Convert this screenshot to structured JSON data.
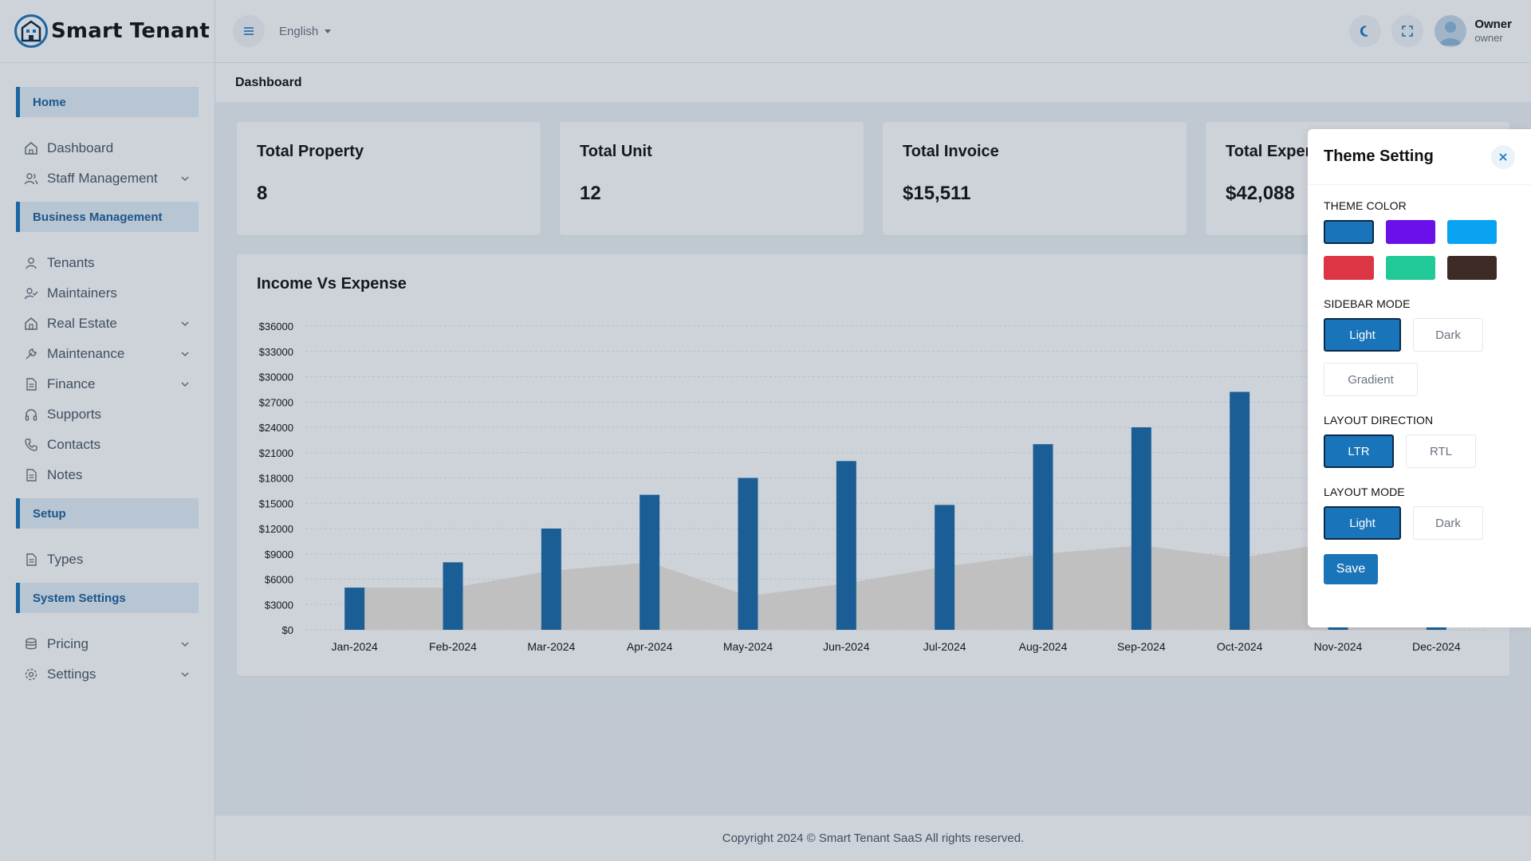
{
  "app": {
    "name": "Smart Tenant"
  },
  "header": {
    "language": "English",
    "user": {
      "name": "Owner",
      "role": "owner"
    }
  },
  "sidebar": {
    "sections": {
      "home": "Home",
      "business": "Business Management",
      "setup": "Setup",
      "system": "System Settings"
    },
    "items": {
      "dashboard": "Dashboard",
      "staff": "Staff Management",
      "tenants": "Tenants",
      "maintainers": "Maintainers",
      "real_estate": "Real Estate",
      "maintenance": "Maintenance",
      "finance": "Finance",
      "supports": "Supports",
      "contacts": "Contacts",
      "notes": "Notes",
      "types": "Types",
      "pricing": "Pricing",
      "settings": "Settings"
    }
  },
  "breadcrumb": "Dashboard",
  "stats": [
    {
      "title": "Total Property",
      "value": "8"
    },
    {
      "title": "Total Unit",
      "value": "12"
    },
    {
      "title": "Total Invoice",
      "value": "$15,511"
    },
    {
      "title": "Total Expense",
      "value": "$42,088"
    }
  ],
  "chart_data": {
    "type": "bar",
    "title": "Income Vs Expense",
    "categories": [
      "Jan-2024",
      "Feb-2024",
      "Mar-2024",
      "Apr-2024",
      "May-2024",
      "Jun-2024",
      "Jul-2024",
      "Aug-2024",
      "Sep-2024",
      "Oct-2024",
      "Nov-2024",
      "Dec-2024"
    ],
    "ylim": [
      0,
      36000
    ],
    "yticks": [
      "$0",
      "$3000",
      "$6000",
      "$9000",
      "$12000",
      "$15000",
      "$18000",
      "$21000",
      "$24000",
      "$27000",
      "$30000",
      "$33000",
      "$36000"
    ],
    "series": [
      {
        "name": "Income",
        "kind": "bar",
        "color": "#1a6aa8",
        "values": [
          5000,
          8000,
          12000,
          16000,
          18000,
          20000,
          14800,
          22000,
          24000,
          28200,
          500,
          500
        ]
      },
      {
        "name": "Expense",
        "kind": "area",
        "color": "#efe7e1",
        "values": [
          5000,
          5000,
          7000,
          8000,
          4000,
          5500,
          7500,
          9000,
          10000,
          8500,
          10500,
          9500
        ]
      }
    ]
  },
  "theme_panel": {
    "title": "Theme Setting",
    "theme_color_label": "THEME COLOR",
    "colors": [
      "#1a74b9",
      "#6a11ea",
      "#0aa3f2",
      "#dc3545",
      "#20c997",
      "#3d2b27"
    ],
    "sidebar_mode_label": "SIDEBAR MODE",
    "sidebar_modes": [
      "Light",
      "Dark",
      "Gradient"
    ],
    "layout_direction_label": "LAYOUT DIRECTION",
    "directions": [
      "LTR",
      "RTL"
    ],
    "layout_mode_label": "LAYOUT MODE",
    "layout_modes": [
      "Light",
      "Dark"
    ],
    "save_label": "Save"
  },
  "footer": {
    "text": "Copyright 2024 © Smart Tenant SaaS All rights reserved."
  }
}
